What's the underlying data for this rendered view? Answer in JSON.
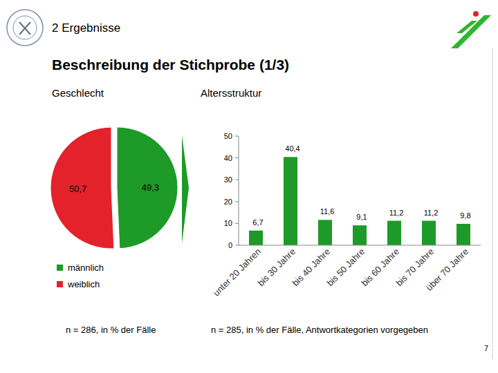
{
  "header": {
    "section": "2 Ergebnisse",
    "title": "Beschreibung der Stichprobe (1/3)"
  },
  "footer": {
    "page": 7
  },
  "chart_data": [
    {
      "type": "pie",
      "title": "Geschlecht",
      "categories": [
        "männlich",
        "weiblich"
      ],
      "values": [
        49.3,
        50.7
      ],
      "value_labels": [
        "49,3",
        "50,7"
      ],
      "colors": [
        "#1e9a28",
        "#e3222b"
      ],
      "data_labels": true,
      "legend": "bottom",
      "note": "n = 286, in % der Fälle"
    },
    {
      "type": "bar",
      "title": "Altersstruktur",
      "categories": [
        "unter 20 Jahren",
        "bis 30 Jahre",
        "bis 40 Jahre",
        "bis 50 Jahre",
        "bis 60 Jahre",
        "bis 70 Jahre",
        "über 70 Jahre"
      ],
      "values": [
        6.7,
        40.4,
        11.6,
        9.1,
        11.2,
        11.2,
        9.8
      ],
      "value_labels": [
        "6,7",
        "40,4",
        "11,6",
        "9,1",
        "11,2",
        "11,2",
        "9,8"
      ],
      "color": "#1e9a28",
      "ylim": [
        0,
        50
      ],
      "yticks": [
        0,
        10,
        20,
        30,
        40,
        50
      ],
      "grid": false,
      "data_labels": true,
      "note": "n = 285, in % der Fälle, Antwortkategorien vorgegeben"
    }
  ]
}
